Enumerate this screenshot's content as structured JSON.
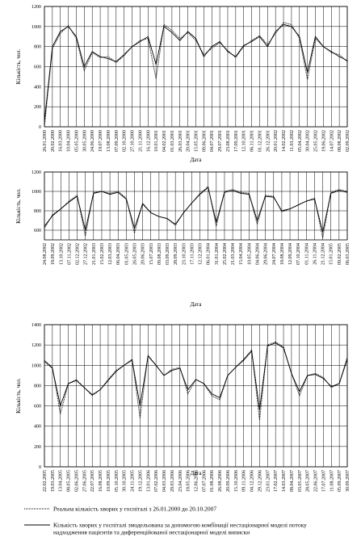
{
  "chart_data": [
    {
      "type": "line",
      "ylabel": "Кількість, чол.",
      "xlabel": "Дата",
      "ylim": [
        0,
        1200
      ],
      "yticks": [
        0,
        200,
        400,
        600,
        800,
        1000,
        1200
      ],
      "grid": true,
      "categories": [
        "26.01.2000",
        "20.02.2000",
        "16.03.2000",
        "10.04.2000",
        "05.05.2000",
        "30.05.2000",
        "24.06.2000",
        "19.07.2000",
        "13.08.2000",
        "07.09.2000",
        "02.10.2000",
        "27.10.2000",
        "21.11.2000",
        "16.12.2000",
        "10.01.2001",
        "04.02.2001",
        "01.03.2001",
        "26.03.2001",
        "20.04.2001",
        "15.05.2001",
        "09.06.2001",
        "04.07.2001",
        "29.07.2001",
        "23.08.2001",
        "17.09.2001",
        "12.10.2001",
        "06.11.2001",
        "01.12.2001",
        "26.12.2001",
        "20.01.2002",
        "14.02.2002",
        "11.03.2002",
        "05.04.2002",
        "30.04.2002",
        "25.05.2002",
        "19.06.2002",
        "14.07.2002",
        "08.08.2002",
        "02.09.2002"
      ],
      "series": [
        {
          "color": "#000000",
          "dash": "dotted",
          "values": [
            0,
            780,
            930,
            1010,
            880,
            560,
            740,
            690,
            700,
            640,
            710,
            800,
            860,
            880,
            480,
            1020,
            960,
            880,
            940,
            860,
            720,
            780,
            840,
            760,
            690,
            800,
            860,
            910,
            820,
            930,
            1040,
            1020,
            880,
            470,
            880,
            800,
            740,
            720,
            650
          ]
        },
        {
          "color": "#000000",
          "dash": "solid",
          "values": [
            50,
            800,
            950,
            1000,
            900,
            600,
            750,
            700,
            680,
            650,
            720,
            800,
            850,
            900,
            620,
            1000,
            940,
            860,
            950,
            880,
            700,
            800,
            850,
            750,
            700,
            810,
            850,
            900,
            800,
            950,
            1020,
            1000,
            900,
            540,
            900,
            800,
            750,
            700,
            660
          ]
        }
      ]
    },
    {
      "type": "line",
      "ylabel": "Кількість, чол.",
      "xlabel": "Дата",
      "ylim": [
        500,
        1200
      ],
      "yticks": [
        600,
        800,
        1000,
        1200
      ],
      "grid": true,
      "categories": [
        "24.08.2002",
        "18.09.2002",
        "13.10.2002",
        "07.11.2002",
        "02.12.2002",
        "27.12.2002",
        "21.01.2003",
        "15.02.2003",
        "12.03.2003",
        "06.04.2003",
        "01.05.2003",
        "26.05.2003",
        "20.06.2003",
        "15.07.2003",
        "09.08.2003",
        "03.09.2003",
        "28.09.2003",
        "23.10.2003",
        "17.11.2003",
        "12.12.2003",
        "06.01.2004",
        "31.01.2004",
        "25.02.2004",
        "21.03.2004",
        "15.04.2004",
        "10.05.2004",
        "04.06.2004",
        "29.06.2004",
        "24.07.2004",
        "18.08.2004",
        "12.09.2004",
        "07.10.2004",
        "01.11.2004",
        "26.11.2004",
        "21.12.2004",
        "15.01.2005",
        "09.02.2005",
        "06.03.2005"
      ],
      "series": [
        {
          "color": "#000000",
          "dash": "dotted",
          "values": [
            620,
            760,
            820,
            900,
            960,
            540,
            990,
            1000,
            980,
            1000,
            930,
            570,
            880,
            780,
            740,
            720,
            650,
            780,
            880,
            980,
            1050,
            640,
            1000,
            1020,
            990,
            980,
            660,
            960,
            950,
            790,
            820,
            860,
            900,
            930,
            520,
            990,
            1020,
            1000
          ]
        },
        {
          "color": "#000000",
          "dash": "solid",
          "values": [
            640,
            750,
            820,
            890,
            950,
            600,
            980,
            1000,
            970,
            990,
            920,
            620,
            870,
            780,
            740,
            720,
            660,
            780,
            880,
            970,
            1040,
            680,
            990,
            1010,
            980,
            970,
            700,
            950,
            940,
            800,
            820,
            860,
            900,
            920,
            580,
            980,
            1010,
            990
          ]
        }
      ]
    },
    {
      "type": "line",
      "ylabel": "Кількість, чол.",
      "xlabel": "Дата",
      "ylim": [
        0,
        1400
      ],
      "yticks": [
        0,
        200,
        400,
        600,
        800,
        1000,
        1200,
        1400
      ],
      "grid": true,
      "categories": [
        "22.02.2005",
        "19.03.2005",
        "13.04.2005",
        "08.05.2005",
        "02.06.2005",
        "27.06.2005",
        "22.07.2005",
        "16.08.2005",
        "10.09.2005",
        "05.10.2005",
        "30.10.2005",
        "24.11.2005",
        "19.12.2005",
        "13.01.2006",
        "07.02.2006",
        "04.03.2006",
        "29.03.2006",
        "23.04.2006",
        "18.05.2006",
        "12.06.2006",
        "07.07.2006",
        "01.08.2006",
        "26.08.2006",
        "20.09.2006",
        "15.10.2006",
        "09.11.2006",
        "04.12.2006",
        "29.12.2006",
        "23.01.2007",
        "17.02.2007",
        "14.03.2007",
        "08.04.2007",
        "03.05.2007",
        "28.05.2007",
        "22.06.2007",
        "17.07.2007",
        "11.08.2007",
        "05.09.2007",
        "30.09.2007"
      ],
      "series": [
        {
          "name": "Реальна кількість хворих у госпіталі з 26.01.2000 до 20.10.2007",
          "color": "#000000",
          "dash": "dotted",
          "values": [
            1050,
            980,
            520,
            820,
            860,
            780,
            700,
            760,
            860,
            950,
            1000,
            1060,
            480,
            1100,
            1000,
            900,
            960,
            980,
            720,
            860,
            820,
            700,
            660,
            900,
            980,
            1060,
            1150,
            460,
            1200,
            1230,
            1180,
            920,
            700,
            900,
            920,
            880,
            780,
            820,
            1080
          ]
        },
        {
          "name": "Кількість хворих у госпіталі змодельована за допомогою комбінації нестаціонарної моделі потоку надходження пацієнтів та диференційованої нестаціонарної моделі виписки",
          "color": "#000000",
          "dash": "solid",
          "values": [
            1040,
            970,
            600,
            820,
            850,
            780,
            710,
            760,
            850,
            940,
            1000,
            1050,
            600,
            1090,
            1000,
            900,
            950,
            970,
            760,
            860,
            820,
            720,
            680,
            900,
            980,
            1050,
            1140,
            560,
            1190,
            1220,
            1170,
            920,
            740,
            900,
            910,
            870,
            790,
            820,
            1060
          ]
        }
      ]
    }
  ]
}
